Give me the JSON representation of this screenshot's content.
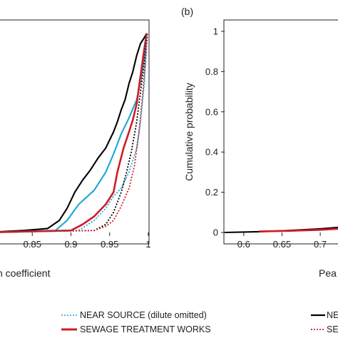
{
  "chart_data": [
    {
      "type": "line",
      "panel_label": "",
      "xlabel": "n coefficient",
      "ylabel": "",
      "xlim": [
        0.8,
        1.0
      ],
      "ylim": [
        0,
        1
      ],
      "xticks": [
        "",
        "0.85",
        "0.9",
        "0.95",
        "1"
      ],
      "series": [
        {
          "style": "solid",
          "color": "#000000",
          "x": [
            0.79,
            0.84,
            0.87,
            0.885,
            0.895,
            0.905,
            0.915,
            0.925,
            0.935,
            0.945,
            0.955,
            0.96,
            0.965,
            0.97,
            0.975,
            0.98,
            0.985,
            0.99,
            0.995,
            0.998
          ],
          "y": [
            0.0,
            0.01,
            0.02,
            0.06,
            0.12,
            0.2,
            0.26,
            0.31,
            0.37,
            0.42,
            0.5,
            0.55,
            0.61,
            0.66,
            0.74,
            0.8,
            0.88,
            0.94,
            0.97,
            0.99
          ]
        },
        {
          "style": "solid",
          "color": "#1aa7d6",
          "x": [
            0.79,
            0.88,
            0.895,
            0.91,
            0.93,
            0.945,
            0.955,
            0.965,
            0.975,
            0.985,
            0.99,
            0.995,
            0.998
          ],
          "y": [
            0.0,
            0.01,
            0.06,
            0.14,
            0.21,
            0.3,
            0.39,
            0.49,
            0.57,
            0.66,
            0.75,
            0.88,
            0.99
          ]
        },
        {
          "style": "solid",
          "color": "#d01c25",
          "x": [
            0.79,
            0.9,
            0.915,
            0.93,
            0.945,
            0.955,
            0.96,
            0.968,
            0.975,
            0.98,
            0.985,
            0.99,
            0.995,
            0.998
          ],
          "y": [
            0.0,
            0.01,
            0.04,
            0.08,
            0.14,
            0.2,
            0.3,
            0.42,
            0.5,
            0.56,
            0.64,
            0.78,
            0.92,
            0.99
          ]
        },
        {
          "style": "dotted",
          "color": "#000000",
          "x": [
            0.79,
            0.93,
            0.945,
            0.955,
            0.965,
            0.972,
            0.978,
            0.985,
            0.99,
            0.995,
            0.998
          ],
          "y": [
            0.0,
            0.01,
            0.04,
            0.1,
            0.2,
            0.3,
            0.4,
            0.55,
            0.7,
            0.85,
            0.99
          ]
        },
        {
          "style": "dotted",
          "color": "#1aa7d6",
          "x": [
            0.79,
            0.91,
            0.93,
            0.945,
            0.955,
            0.965,
            0.975,
            0.985,
            0.99,
            0.995,
            0.998
          ],
          "y": [
            0.0,
            0.01,
            0.06,
            0.12,
            0.18,
            0.22,
            0.3,
            0.42,
            0.55,
            0.75,
            0.99
          ]
        },
        {
          "style": "dotted",
          "color": "#d01c25",
          "x": [
            0.79,
            0.93,
            0.945,
            0.955,
            0.965,
            0.975,
            0.982,
            0.988,
            0.993,
            0.997,
            0.999
          ],
          "y": [
            0.0,
            0.01,
            0.03,
            0.06,
            0.13,
            0.22,
            0.33,
            0.5,
            0.7,
            0.88,
            0.99
          ]
        }
      ]
    },
    {
      "type": "line",
      "panel_label": "(b)",
      "xlabel": "Pea",
      "ylabel": "Cumulative probability",
      "xlim": [
        0.575,
        0.74
      ],
      "ylim": [
        0,
        1
      ],
      "xticks": [
        "0.6",
        "0.65",
        "0.7"
      ],
      "yticks": [
        "0",
        "0.2",
        "0.4",
        "0.6",
        "0.8",
        "1"
      ],
      "series": [
        {
          "style": "solid",
          "color": "#000000",
          "x": [
            0.575,
            0.62,
            0.66,
            0.7,
            0.74
          ],
          "y": [
            0.0,
            0.004,
            0.01,
            0.018,
            0.03
          ]
        },
        {
          "style": "solid",
          "color": "#d01c25",
          "x": [
            0.62,
            0.66,
            0.7,
            0.73
          ],
          "y": [
            0.005,
            0.008,
            0.013,
            0.02
          ]
        },
        {
          "style": "dotted",
          "color": "#d01c25",
          "x": [
            0.7,
            0.74
          ],
          "y": [
            0.012,
            0.02
          ]
        }
      ]
    }
  ],
  "legend": {
    "items": [
      {
        "label": "NEAR SOURCE (dilute omitted)",
        "color": "#1aa7d6",
        "style": "dotted"
      },
      {
        "label": "SEWAGE TREATMENT WORKS",
        "color": "#d01c25",
        "style": "solid"
      },
      {
        "label": "NE",
        "color": "#000000",
        "style": "solid"
      },
      {
        "label": "SE",
        "color": "#d01c25",
        "style": "dotted"
      }
    ]
  }
}
